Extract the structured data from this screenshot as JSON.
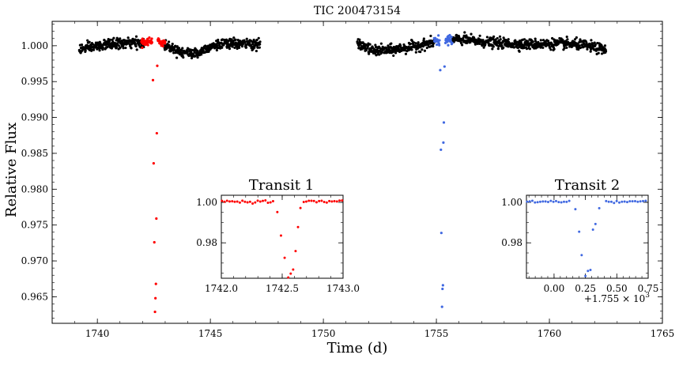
{
  "chart_data": [
    {
      "id": "main",
      "type": "scatter",
      "title": "TIC 200473154",
      "xlabel": "Time (d)",
      "ylabel": "Relative Flux",
      "xlim": [
        1738,
        1765
      ],
      "ylim": [
        0.9613,
        1.0034
      ],
      "xticks": [
        1740,
        1745,
        1750,
        1755,
        1760,
        1765
      ],
      "xtick_labels": [
        "1740",
        "1745",
        "1750",
        "1755",
        "1760",
        "1765"
      ],
      "yticks": [
        0.965,
        0.97,
        0.975,
        0.98,
        0.985,
        0.99,
        0.995,
        1.0
      ],
      "ytick_labels": [
        "0.965",
        "0.970",
        "0.975",
        "0.980",
        "0.985",
        "0.990",
        "0.995",
        "1.000"
      ],
      "grid": false,
      "series": [
        {
          "color": "#000000",
          "segments": [
            {
              "x_start": 1739.2,
              "x_end": 1747.2,
              "gaps": [
                [
                  1742.05,
                  1742.95
                ]
              ],
              "baseline": [
                [
                  1739.2,
                  0.9995
                ],
                [
                  1740.5,
                  1.0002
                ],
                [
                  1741.5,
                  1.0004
                ],
                [
                  1742.0,
                  1.0003
                ],
                [
                  1743.0,
                  1.0001
                ],
                [
                  1743.8,
                  0.9991
                ],
                [
                  1744.4,
                  0.9989
                ],
                [
                  1745.0,
                  1.0
                ],
                [
                  1746.0,
                  1.0003
                ],
                [
                  1747.2,
                  1.0002
                ]
              ]
            },
            {
              "x_start": 1751.5,
              "x_end": 1762.5,
              "gaps": [
                [
                  1754.9,
                  1755.7
                ]
              ],
              "baseline": [
                [
                  1751.5,
                  1.0003
                ],
                [
                  1752.2,
                  0.9993
                ],
                [
                  1753.0,
                  0.9994
                ],
                [
                  1754.0,
                  0.9999
                ],
                [
                  1755.0,
                  1.0005
                ],
                [
                  1756.0,
                  1.0009
                ],
                [
                  1757.5,
                  1.0004
                ],
                [
                  1759.0,
                  1.0002
                ],
                [
                  1760.5,
                  1.0003
                ],
                [
                  1761.5,
                  1.0001
                ],
                [
                  1762.5,
                  0.9994
                ]
              ]
            }
          ],
          "scatter": 0.0005
        },
        {
          "color": "#ff0000",
          "points": [
            [
              1742.46,
              0.9952
            ],
            [
              1742.49,
              0.9836
            ],
            [
              1742.52,
              0.9726
            ],
            [
              1742.55,
              0.9629
            ],
            [
              1742.57,
              0.9648
            ],
            [
              1742.59,
              0.9668
            ],
            [
              1742.61,
              0.9759
            ],
            [
              1742.63,
              0.9878
            ],
            [
              1742.65,
              0.9972
            ]
          ],
          "oot_cluster": {
            "x_start": 1741.95,
            "x_end": 1743.0,
            "transit_start": 1742.43,
            "transit_end": 1742.67,
            "center": 1.0005,
            "scatter": 0.0003
          }
        },
        {
          "color": "#4169e1",
          "points": [
            [
              1755.17,
              0.9966
            ],
            [
              1755.2,
              0.9855
            ],
            [
              1755.22,
              0.9739
            ],
            [
              1755.25,
              0.9636
            ],
            [
              1755.27,
              0.9661
            ],
            [
              1755.29,
              0.9666
            ],
            [
              1755.31,
              0.9865
            ],
            [
              1755.33,
              0.9893
            ],
            [
              1755.36,
              0.9971
            ]
          ],
          "oot_cluster": {
            "x_start": 1754.9,
            "x_end": 1755.7,
            "transit_start": 1755.14,
            "transit_end": 1755.4,
            "center": 1.0008,
            "scatter": 0.0003
          }
        }
      ]
    },
    {
      "id": "inset1",
      "type": "scatter",
      "title": "Transit 1",
      "xlim": [
        1742.0,
        1743.0
      ],
      "ylim": [
        0.9625,
        1.0035
      ],
      "xticks": [
        1742.0,
        1742.5,
        1743.0
      ],
      "xtick_labels": [
        "1742.0",
        "1742.5",
        "1743.0"
      ],
      "yticks": [
        0.98,
        1.0
      ],
      "ytick_labels": [
        "0.98",
        "1.00"
      ],
      "color": "#ff0000",
      "points": [
        [
          1742.46,
          0.9952
        ],
        [
          1742.49,
          0.9836
        ],
        [
          1742.52,
          0.9726
        ],
        [
          1742.55,
          0.9629
        ],
        [
          1742.57,
          0.9648
        ],
        [
          1742.59,
          0.9668
        ],
        [
          1742.61,
          0.9759
        ],
        [
          1742.63,
          0.9878
        ],
        [
          1742.65,
          0.9972
        ]
      ],
      "baseline": {
        "center": 1.0004,
        "transit_start": 1742.43,
        "transit_end": 1742.67
      }
    },
    {
      "id": "inset2",
      "type": "scatter",
      "title": "Transit 2",
      "xlim": [
        1754.78,
        1755.75
      ],
      "ylim": [
        0.9625,
        1.0035
      ],
      "xticks": [
        1755.0,
        1755.25,
        1755.5,
        1755.75
      ],
      "xtick_labels": [
        "0.00",
        "0.25",
        "0.50",
        "0.75"
      ],
      "offset_label": "+1.755 × 10",
      "offset_exponent": "3",
      "yticks": [
        0.98,
        1.0
      ],
      "ytick_labels": [
        "0.98",
        "1.00"
      ],
      "color": "#4169e1",
      "points": [
        [
          1755.17,
          0.9966
        ],
        [
          1755.2,
          0.9855
        ],
        [
          1755.22,
          0.9739
        ],
        [
          1755.25,
          0.9636
        ],
        [
          1755.27,
          0.9661
        ],
        [
          1755.29,
          0.9666
        ],
        [
          1755.31,
          0.9865
        ],
        [
          1755.33,
          0.9893
        ],
        [
          1755.36,
          0.9971
        ]
      ],
      "baseline": {
        "center": 1.0004,
        "transit_start": 1755.14,
        "transit_end": 1755.4
      }
    }
  ]
}
